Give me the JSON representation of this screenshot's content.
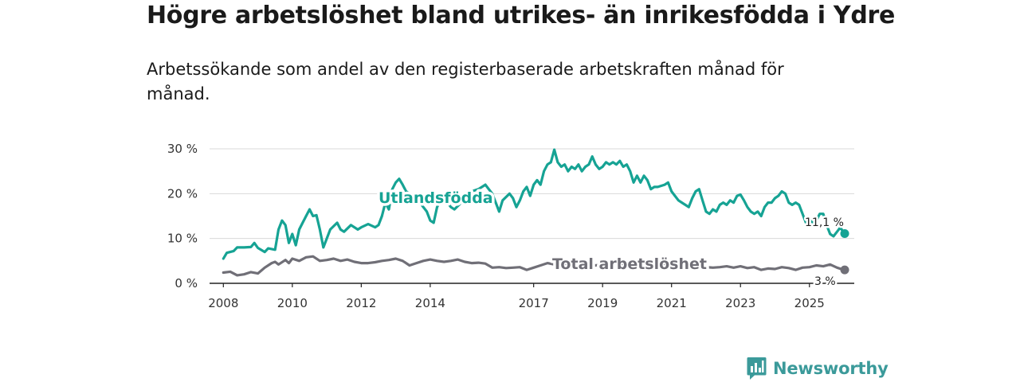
{
  "chart_data": {
    "type": "line",
    "title": "Högre arbetslöshet bland utrikes- än inrikesfödda i Ydre",
    "subtitle": "Arbetssökande som andel av den registerbaserade arbetskraften månad för månad.",
    "xlabel": "",
    "ylabel": "",
    "xlim": [
      2007.6,
      2026.3
    ],
    "ylim": [
      0,
      30
    ],
    "y_ticks": [
      0,
      10,
      20,
      30
    ],
    "y_tick_labels": [
      "0 %",
      "10 %",
      "20 %",
      "30 %"
    ],
    "x_ticks": [
      2008,
      2010,
      2012,
      2014,
      2017,
      2019,
      2021,
      2023,
      2025
    ],
    "x_tick_labels": [
      "2008",
      "2010",
      "2012",
      "2014",
      "2017",
      "2019",
      "2021",
      "2023",
      "2025"
    ],
    "grid": true,
    "series": [
      {
        "name": "Utlandsfödda",
        "label": "Utlandsfödda",
        "color": "#16a394",
        "last_value": 11.1,
        "last_label": "11,1 %",
        "points": [
          [
            2008.0,
            5.5
          ],
          [
            2008.1,
            6.8
          ],
          [
            2008.3,
            7.2
          ],
          [
            2008.4,
            8.0
          ],
          [
            2008.6,
            8.0
          ],
          [
            2008.8,
            8.1
          ],
          [
            2008.9,
            9.0
          ],
          [
            2009.0,
            7.9
          ],
          [
            2009.2,
            7.0
          ],
          [
            2009.3,
            7.8
          ],
          [
            2009.5,
            7.5
          ],
          [
            2009.6,
            12.0
          ],
          [
            2009.7,
            14.0
          ],
          [
            2009.8,
            13.0
          ],
          [
            2009.9,
            9.0
          ],
          [
            2010.0,
            11.0
          ],
          [
            2010.1,
            8.5
          ],
          [
            2010.2,
            12.0
          ],
          [
            2010.3,
            13.5
          ],
          [
            2010.4,
            15.0
          ],
          [
            2010.5,
            16.5
          ],
          [
            2010.6,
            15.0
          ],
          [
            2010.7,
            15.2
          ],
          [
            2010.8,
            12.0
          ],
          [
            2010.9,
            8.0
          ],
          [
            2011.0,
            10.0
          ],
          [
            2011.1,
            12.0
          ],
          [
            2011.3,
            13.5
          ],
          [
            2011.4,
            12.0
          ],
          [
            2011.5,
            11.5
          ],
          [
            2011.7,
            13.0
          ],
          [
            2011.9,
            12.0
          ],
          [
            2012.0,
            12.5
          ],
          [
            2012.2,
            13.2
          ],
          [
            2012.4,
            12.5
          ],
          [
            2012.5,
            13.0
          ],
          [
            2012.6,
            15.0
          ],
          [
            2012.7,
            18.0
          ],
          [
            2012.8,
            16.5
          ],
          [
            2012.9,
            21.0
          ],
          [
            2013.0,
            22.5
          ],
          [
            2013.1,
            23.3
          ],
          [
            2013.2,
            22.0
          ],
          [
            2013.3,
            20.5
          ],
          [
            2013.4,
            20.0
          ],
          [
            2013.6,
            19.0
          ],
          [
            2013.7,
            18.0
          ],
          [
            2013.8,
            17.0
          ],
          [
            2013.9,
            16.0
          ],
          [
            2014.0,
            14.0
          ],
          [
            2014.1,
            13.5
          ],
          [
            2014.2,
            17.0
          ],
          [
            2014.3,
            18.5
          ],
          [
            2014.5,
            18.0
          ],
          [
            2014.6,
            17.0
          ],
          [
            2014.7,
            16.5
          ],
          [
            2014.9,
            18.0
          ],
          [
            2015.0,
            19.5
          ],
          [
            2015.2,
            20.5
          ],
          [
            2015.4,
            21.0
          ],
          [
            2015.6,
            22.0
          ],
          [
            2015.8,
            20.0
          ],
          [
            2015.9,
            18.0
          ],
          [
            2016.0,
            16.0
          ],
          [
            2016.1,
            18.5
          ],
          [
            2016.3,
            20.0
          ],
          [
            2016.4,
            19.0
          ],
          [
            2016.5,
            17.0
          ],
          [
            2016.6,
            18.5
          ],
          [
            2016.7,
            20.5
          ],
          [
            2016.8,
            21.5
          ],
          [
            2016.9,
            19.5
          ],
          [
            2017.0,
            22.0
          ],
          [
            2017.1,
            23.0
          ],
          [
            2017.2,
            22.0
          ],
          [
            2017.3,
            25.0
          ],
          [
            2017.4,
            26.5
          ],
          [
            2017.5,
            27.0
          ],
          [
            2017.6,
            29.8
          ],
          [
            2017.7,
            27.0
          ],
          [
            2017.8,
            26.0
          ],
          [
            2017.9,
            26.5
          ],
          [
            2018.0,
            25.0
          ],
          [
            2018.1,
            26.0
          ],
          [
            2018.2,
            25.5
          ],
          [
            2018.3,
            26.5
          ],
          [
            2018.4,
            25.0
          ],
          [
            2018.5,
            26.0
          ],
          [
            2018.6,
            26.5
          ],
          [
            2018.7,
            28.3
          ],
          [
            2018.8,
            26.5
          ],
          [
            2018.9,
            25.5
          ],
          [
            2019.0,
            26.0
          ],
          [
            2019.1,
            27.0
          ],
          [
            2019.2,
            26.5
          ],
          [
            2019.3,
            27.0
          ],
          [
            2019.4,
            26.5
          ],
          [
            2019.5,
            27.3
          ],
          [
            2019.6,
            26.0
          ],
          [
            2019.7,
            26.5
          ],
          [
            2019.8,
            25.0
          ],
          [
            2019.9,
            22.5
          ],
          [
            2020.0,
            24.0
          ],
          [
            2020.1,
            22.5
          ],
          [
            2020.2,
            24.0
          ],
          [
            2020.3,
            23.0
          ],
          [
            2020.4,
            21.0
          ],
          [
            2020.5,
            21.5
          ],
          [
            2020.6,
            21.5
          ],
          [
            2020.8,
            22.0
          ],
          [
            2020.9,
            22.5
          ],
          [
            2021.0,
            20.5
          ],
          [
            2021.1,
            19.5
          ],
          [
            2021.2,
            18.5
          ],
          [
            2021.3,
            18.0
          ],
          [
            2021.4,
            17.5
          ],
          [
            2021.5,
            17.0
          ],
          [
            2021.6,
            19.0
          ],
          [
            2021.7,
            20.5
          ],
          [
            2021.8,
            21.0
          ],
          [
            2021.9,
            18.5
          ],
          [
            2022.0,
            16.0
          ],
          [
            2022.1,
            15.5
          ],
          [
            2022.2,
            16.5
          ],
          [
            2022.3,
            16.0
          ],
          [
            2022.4,
            17.5
          ],
          [
            2022.5,
            18.0
          ],
          [
            2022.6,
            17.5
          ],
          [
            2022.7,
            18.5
          ],
          [
            2022.8,
            18.0
          ],
          [
            2022.9,
            19.5
          ],
          [
            2023.0,
            19.8
          ],
          [
            2023.1,
            18.5
          ],
          [
            2023.2,
            17.0
          ],
          [
            2023.3,
            16.0
          ],
          [
            2023.4,
            15.5
          ],
          [
            2023.5,
            16.0
          ],
          [
            2023.6,
            15.0
          ],
          [
            2023.7,
            17.0
          ],
          [
            2023.8,
            18.0
          ],
          [
            2023.9,
            18.0
          ],
          [
            2024.0,
            19.0
          ],
          [
            2024.1,
            19.5
          ],
          [
            2024.2,
            20.5
          ],
          [
            2024.3,
            20.0
          ],
          [
            2024.4,
            18.0
          ],
          [
            2024.5,
            17.5
          ],
          [
            2024.6,
            18.0
          ],
          [
            2024.7,
            17.5
          ],
          [
            2024.8,
            15.5
          ],
          [
            2024.9,
            13.5
          ],
          [
            2025.0,
            14.5
          ],
          [
            2025.1,
            13.5
          ],
          [
            2025.2,
            14.0
          ],
          [
            2025.3,
            15.5
          ],
          [
            2025.4,
            15.5
          ],
          [
            2025.5,
            13.0
          ],
          [
            2025.6,
            11.0
          ],
          [
            2025.7,
            10.5
          ],
          [
            2025.8,
            11.5
          ],
          [
            2025.9,
            12.5
          ],
          [
            2026.0,
            11.1
          ]
        ]
      },
      {
        "name": "Total arbetslöshet",
        "label": "Total arbetslöshet",
        "color": "#706f77",
        "last_value": 3.0,
        "last_label": "3 %",
        "points": [
          [
            2008.0,
            2.4
          ],
          [
            2008.2,
            2.6
          ],
          [
            2008.4,
            1.8
          ],
          [
            2008.6,
            2.0
          ],
          [
            2008.8,
            2.5
          ],
          [
            2009.0,
            2.2
          ],
          [
            2009.2,
            3.5
          ],
          [
            2009.4,
            4.5
          ],
          [
            2009.5,
            4.8
          ],
          [
            2009.6,
            4.2
          ],
          [
            2009.8,
            5.2
          ],
          [
            2009.9,
            4.5
          ],
          [
            2010.0,
            5.5
          ],
          [
            2010.2,
            5.0
          ],
          [
            2010.4,
            5.8
          ],
          [
            2010.6,
            6.0
          ],
          [
            2010.8,
            5.0
          ],
          [
            2011.0,
            5.2
          ],
          [
            2011.2,
            5.5
          ],
          [
            2011.4,
            5.0
          ],
          [
            2011.6,
            5.3
          ],
          [
            2011.8,
            4.8
          ],
          [
            2012.0,
            4.5
          ],
          [
            2012.2,
            4.5
          ],
          [
            2012.4,
            4.7
          ],
          [
            2012.6,
            5.0
          ],
          [
            2012.8,
            5.2
          ],
          [
            2013.0,
            5.5
          ],
          [
            2013.2,
            5.0
          ],
          [
            2013.4,
            4.0
          ],
          [
            2013.6,
            4.5
          ],
          [
            2013.8,
            5.0
          ],
          [
            2014.0,
            5.3
          ],
          [
            2014.2,
            5.0
          ],
          [
            2014.4,
            4.8
          ],
          [
            2014.6,
            5.0
          ],
          [
            2014.8,
            5.3
          ],
          [
            2015.0,
            4.8
          ],
          [
            2015.2,
            4.5
          ],
          [
            2015.4,
            4.6
          ],
          [
            2015.6,
            4.4
          ],
          [
            2015.8,
            3.5
          ],
          [
            2016.0,
            3.6
          ],
          [
            2016.2,
            3.4
          ],
          [
            2016.4,
            3.5
          ],
          [
            2016.6,
            3.6
          ],
          [
            2016.8,
            3.0
          ],
          [
            2017.0,
            3.5
          ],
          [
            2017.2,
            4.0
          ],
          [
            2017.4,
            4.5
          ],
          [
            2017.6,
            4.2
          ],
          [
            2017.8,
            4.4
          ],
          [
            2018.0,
            4.2
          ],
          [
            2018.2,
            4.4
          ],
          [
            2018.4,
            4.5
          ],
          [
            2018.6,
            4.2
          ],
          [
            2018.8,
            4.0
          ],
          [
            2019.0,
            4.2
          ],
          [
            2019.2,
            4.0
          ],
          [
            2019.4,
            4.3
          ],
          [
            2019.6,
            4.0
          ],
          [
            2019.8,
            4.1
          ],
          [
            2020.0,
            3.8
          ],
          [
            2020.2,
            4.0
          ],
          [
            2020.4,
            4.3
          ],
          [
            2020.6,
            4.0
          ],
          [
            2020.8,
            4.2
          ],
          [
            2021.0,
            3.8
          ],
          [
            2021.2,
            4.0
          ],
          [
            2021.4,
            3.7
          ],
          [
            2021.6,
            4.0
          ],
          [
            2021.8,
            3.9
          ],
          [
            2022.0,
            3.6
          ],
          [
            2022.2,
            3.5
          ],
          [
            2022.4,
            3.6
          ],
          [
            2022.6,
            3.8
          ],
          [
            2022.8,
            3.5
          ],
          [
            2023.0,
            3.8
          ],
          [
            2023.2,
            3.4
          ],
          [
            2023.4,
            3.6
          ],
          [
            2023.6,
            3.0
          ],
          [
            2023.8,
            3.3
          ],
          [
            2024.0,
            3.2
          ],
          [
            2024.2,
            3.6
          ],
          [
            2024.4,
            3.4
          ],
          [
            2024.6,
            3.0
          ],
          [
            2024.8,
            3.5
          ],
          [
            2025.0,
            3.6
          ],
          [
            2025.2,
            4.0
          ],
          [
            2025.4,
            3.8
          ],
          [
            2025.6,
            4.2
          ],
          [
            2025.8,
            3.5
          ],
          [
            2026.0,
            3.0
          ]
        ]
      }
    ]
  },
  "branding": {
    "logo_text": "Newsworthy",
    "accent": "#3b9a9a"
  }
}
